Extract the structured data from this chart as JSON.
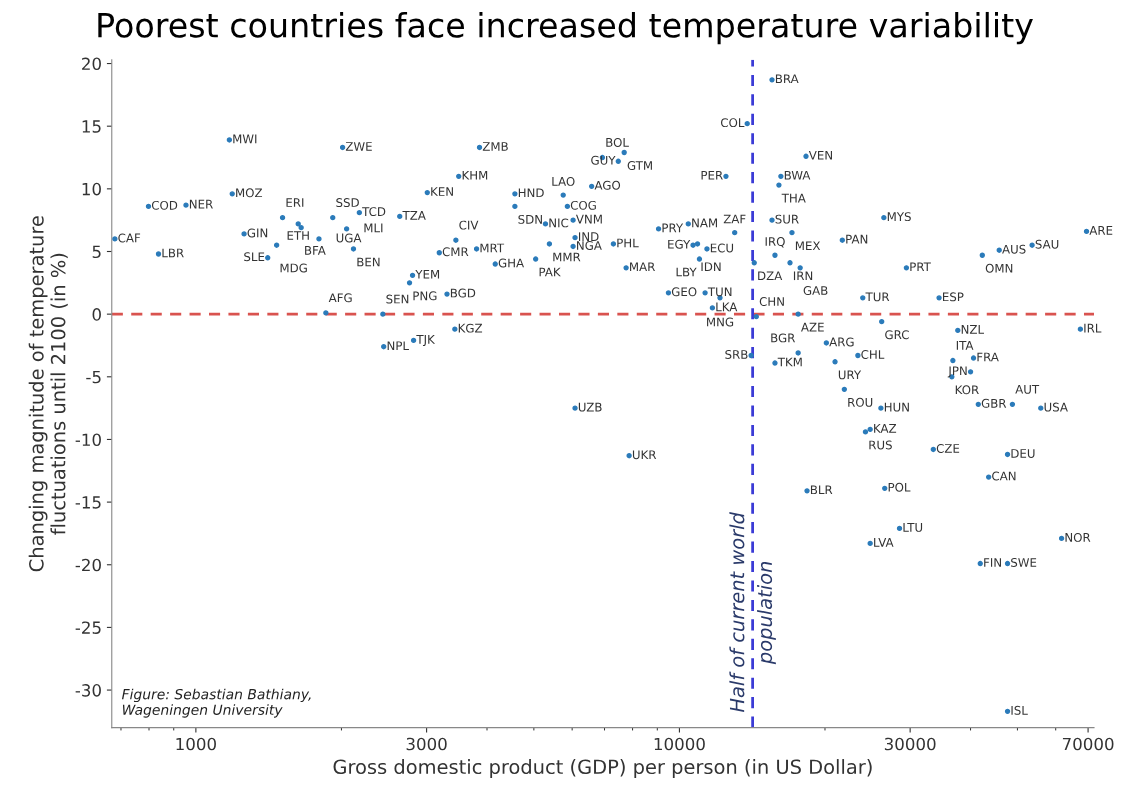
{
  "chart_data": {
    "type": "scatter",
    "title": "Poorest countries face increased temperature variability",
    "xlabel": "Gross domestic product (GDP) per person (in US Dollar)",
    "ylabel": "Changing magnitude of temperature\nfluctuations until 2100 (in %)",
    "log": "x",
    "xlim": [
      670,
      72000
    ],
    "xticks": [
      1000,
      3000,
      10000,
      30000,
      70000
    ],
    "ylim": [
      -33,
      20.3
    ],
    "yticks": [
      -30,
      -25,
      -20,
      -15,
      -10,
      -5,
      0,
      5,
      10,
      15,
      20
    ],
    "grid": false,
    "legend": false,
    "marker": "circle",
    "series": [
      {
        "color": "#2b7bba",
        "x": [
          680,
          798,
          954,
          837,
          1173,
          1189,
          1258,
          1511,
          1628,
          1651,
          1469,
          1408,
          1797,
          1919,
          2178,
          2050,
          2118,
          2011,
          1857,
          2436,
          2446,
          2820,
          2640,
          3010,
          2806,
          2766,
          3860,
          3496,
          3449,
          3187,
          3806,
          4160,
          3306,
          3432,
          4568,
          4568,
          5284,
          6027,
          5384,
          5043,
          6083,
          6027,
          5750,
          5865,
          6584,
          6930,
          7687,
          7474,
          7302,
          7758,
          9054,
          10430,
          10670,
          10900,
          11400,
          11000,
          9490,
          11300,
          12130,
          11700,
          13010,
          12480,
          13810,
          15540,
          18270,
          16210,
          16060,
          15540,
          17090,
          15760,
          16930,
          14280,
          17770,
          14420,
          17600,
          14070,
          15760,
          17600,
          20130,
          23390,
          20980,
          21930,
          21720,
          26470,
          29470,
          23940,
          26200,
          34430,
          37640,
          36770,
          40570,
          36590,
          40000,
          45850,
          53620,
          42300,
          69480,
          67480,
          48820,
          55880,
          41500,
          26100,
          24800,
          24250,
          33500,
          47700,
          43600,
          18360,
          26580,
          28520,
          24800,
          41890,
          47700,
          61700,
          47700,
          6083,
          7870
        ],
        "values": [
          6.0,
          8.6,
          8.7,
          4.8,
          13.9,
          9.6,
          6.4,
          7.7,
          7.2,
          6.9,
          5.5,
          4.5,
          6.0,
          7.7,
          8.1,
          6.8,
          5.2,
          13.3,
          0.1,
          0.0,
          -2.6,
          -2.1,
          7.8,
          9.7,
          3.1,
          2.5,
          13.3,
          11.0,
          5.9,
          4.9,
          5.2,
          4.0,
          1.6,
          -1.2,
          9.6,
          8.6,
          7.2,
          7.5,
          5.6,
          4.4,
          6.1,
          5.4,
          9.5,
          8.6,
          10.2,
          12.5,
          12.9,
          12.2,
          5.6,
          3.7,
          6.8,
          7.2,
          5.5,
          5.6,
          5.2,
          4.4,
          1.7,
          1.7,
          1.3,
          0.5,
          6.5,
          11.0,
          15.2,
          18.7,
          12.6,
          11.0,
          10.3,
          7.5,
          6.5,
          4.7,
          4.1,
          4.1,
          3.7,
          -0.2,
          0.0,
          -3.3,
          -3.9,
          -3.1,
          -2.3,
          -3.3,
          -3.8,
          -6.0,
          5.9,
          7.7,
          3.7,
          1.3,
          -0.6,
          1.3,
          -1.3,
          -3.7,
          -3.5,
          -5.0,
          -4.6,
          5.1,
          5.5,
          4.7,
          6.6,
          -1.2,
          -7.2,
          -7.5,
          -7.2,
          -7.5,
          -9.2,
          -9.4,
          -10.8,
          -11.2,
          -13.0,
          -14.1,
          -13.9,
          -17.1,
          -18.3,
          -19.9,
          -19.9,
          -17.9,
          -31.7,
          -7.5,
          -11.3
        ]
      }
    ],
    "ref_lines": [
      {
        "axis": "y",
        "value": 0,
        "color": "#d9534f",
        "line_style": "dashed"
      },
      {
        "axis": "x",
        "value": 14170,
        "color": "#3b3bd6",
        "line_style": "dashed",
        "label": "Half of current world\npopulation"
      }
    ],
    "annotations": [
      "Figure: Sebastian Bathiany,\nWageningen University",
      {
        "text": "CAF",
        "x": 680,
        "y": 6.0
      },
      {
        "text": "COD",
        "x": 798,
        "y": 8.6
      },
      {
        "text": "NER",
        "x": 954,
        "y": 8.7
      },
      {
        "text": "LBR",
        "x": 837,
        "y": 4.8
      },
      {
        "text": "MWI",
        "x": 1173,
        "y": 13.9
      },
      {
        "text": "MOZ",
        "x": 1189,
        "y": 9.6
      },
      {
        "text": "GIN",
        "x": 1258,
        "y": 6.4
      },
      {
        "text": "ERI",
        "x": 1511,
        "y": 7.7
      },
      {
        "text": "ETH",
        "x": 1628,
        "y": 7.2
      },
      {
        "text": "BFA",
        "x": 1651,
        "y": 6.9
      },
      {
        "text": "MDG",
        "x": 1469,
        "y": 5.5
      },
      {
        "text": "SLE",
        "x": 1408,
        "y": 4.5
      },
      {
        "text": "UGA",
        "x": 1797,
        "y": 6.0
      },
      {
        "text": "SSD",
        "x": 1919,
        "y": 7.7
      },
      {
        "text": "TCD",
        "x": 2178,
        "y": 8.1
      },
      {
        "text": "MLI",
        "x": 2050,
        "y": 6.8
      },
      {
        "text": "BEN",
        "x": 2118,
        "y": 5.2
      },
      {
        "text": "ZWE",
        "x": 2011,
        "y": 13.3
      },
      {
        "text": "AFG",
        "x": 1857,
        "y": 0.1
      },
      {
        "text": "SEN",
        "x": 2436,
        "y": 0.0
      },
      {
        "text": "NPL",
        "x": 2446,
        "y": -2.6
      },
      {
        "text": "TJK",
        "x": 2820,
        "y": -2.1
      },
      {
        "text": "TZA",
        "x": 2640,
        "y": 7.8
      },
      {
        "text": "KEN",
        "x": 3010,
        "y": 9.7
      },
      {
        "text": "YEM",
        "x": 2806,
        "y": 3.1
      },
      {
        "text": "PNG",
        "x": 2766,
        "y": 2.5
      },
      {
        "text": "ZMB",
        "x": 3860,
        "y": 13.3
      },
      {
        "text": "KHM",
        "x": 3496,
        "y": 11.0
      },
      {
        "text": "CIV",
        "x": 3449,
        "y": 5.9
      },
      {
        "text": "CMR",
        "x": 3187,
        "y": 4.9
      },
      {
        "text": "MRT",
        "x": 3806,
        "y": 5.2
      },
      {
        "text": "GHA",
        "x": 4160,
        "y": 4.0
      },
      {
        "text": "BGD",
        "x": 3306,
        "y": 1.6
      },
      {
        "text": "KGZ",
        "x": 3432,
        "y": -1.2
      },
      {
        "text": "HND",
        "x": 4568,
        "y": 9.6
      },
      {
        "text": "SDN",
        "x": 4568,
        "y": 8.6
      },
      {
        "text": "NIC",
        "x": 5284,
        "y": 7.2
      },
      {
        "text": "VNM",
        "x": 6027,
        "y": 7.5
      },
      {
        "text": "MMR",
        "x": 5384,
        "y": 5.6
      },
      {
        "text": "PAK",
        "x": 5043,
        "y": 4.4
      },
      {
        "text": "IND",
        "x": 6083,
        "y": 6.1
      },
      {
        "text": "NGA",
        "x": 6027,
        "y": 5.4
      },
      {
        "text": "LAO",
        "x": 5750,
        "y": 9.5
      },
      {
        "text": "COG",
        "x": 5865,
        "y": 8.6
      },
      {
        "text": "AGO",
        "x": 6584,
        "y": 10.2
      },
      {
        "text": "BOL",
        "x": 6930,
        "y": 12.5
      },
      {
        "text": "GTM",
        "x": 7687,
        "y": 12.9
      },
      {
        "text": "GUY",
        "x": 7474,
        "y": 12.2
      },
      {
        "text": "PHL",
        "x": 7302,
        "y": 5.6
      },
      {
        "text": "MAR",
        "x": 7758,
        "y": 3.7
      },
      {
        "text": "PRY",
        "x": 9054,
        "y": 6.8
      },
      {
        "text": "NAM",
        "x": 10430,
        "y": 7.2
      },
      {
        "text": "EGY",
        "x": 10670,
        "y": 5.5
      },
      {
        "text": "IDN",
        "x": 10900,
        "y": 5.6
      },
      {
        "text": "ECU",
        "x": 11400,
        "y": 5.2
      },
      {
        "text": "LBY",
        "x": 11000,
        "y": 4.4
      },
      {
        "text": "GEO",
        "x": 9490,
        "y": 1.7
      },
      {
        "text": "TUN",
        "x": 11300,
        "y": 1.7
      },
      {
        "text": "MNG",
        "x": 12130,
        "y": 1.3
      },
      {
        "text": "LKA",
        "x": 11700,
        "y": 0.5
      },
      {
        "text": "ZAF",
        "x": 13010,
        "y": 6.5
      },
      {
        "text": "PER",
        "x": 12480,
        "y": 11.0
      },
      {
        "text": "COL",
        "x": 13810,
        "y": 15.2
      },
      {
        "text": "BRA",
        "x": 15540,
        "y": 18.7
      },
      {
        "text": "VEN",
        "x": 18270,
        "y": 12.6
      },
      {
        "text": "BWA",
        "x": 16210,
        "y": 11.0
      },
      {
        "text": "THA",
        "x": 16060,
        "y": 10.3
      },
      {
        "text": "SUR",
        "x": 15540,
        "y": 7.5
      },
      {
        "text": "MEX",
        "x": 17090,
        "y": 6.5
      },
      {
        "text": "IRQ",
        "x": 15760,
        "y": 4.7
      },
      {
        "text": "IRN",
        "x": 16930,
        "y": 4.1
      },
      {
        "text": "DZA",
        "x": 14280,
        "y": 4.1
      },
      {
        "text": "GAB",
        "x": 17770,
        "y": 3.7
      },
      {
        "text": "CHN",
        "x": 14420,
        "y": -0.2
      },
      {
        "text": "AZE",
        "x": 17600,
        "y": 0.0
      },
      {
        "text": "SRB",
        "x": 14070,
        "y": -3.3
      },
      {
        "text": "TKM",
        "x": 15760,
        "y": -3.9
      },
      {
        "text": "BGR",
        "x": 17600,
        "y": -3.1
      },
      {
        "text": "ARG",
        "x": 20130,
        "y": -2.3
      },
      {
        "text": "CHL",
        "x": 23390,
        "y": -3.3
      },
      {
        "text": "URY",
        "x": 20980,
        "y": -3.8
      },
      {
        "text": "ROU",
        "x": 21930,
        "y": -6.0
      },
      {
        "text": "PAN",
        "x": 21720,
        "y": 5.9
      },
      {
        "text": "MYS",
        "x": 26470,
        "y": 7.7
      },
      {
        "text": "PRT",
        "x": 29470,
        "y": 3.7
      },
      {
        "text": "TUR",
        "x": 23940,
        "y": 1.3
      },
      {
        "text": "GRC",
        "x": 26200,
        "y": -0.6
      },
      {
        "text": "ESP",
        "x": 34430,
        "y": 1.3
      },
      {
        "text": "NZL",
        "x": 37640,
        "y": -1.3
      },
      {
        "text": "ITA",
        "x": 36770,
        "y": -3.7
      },
      {
        "text": "FRA",
        "x": 40570,
        "y": -3.5
      },
      {
        "text": "KOR",
        "x": 36590,
        "y": -5.0
      },
      {
        "text": "JPN",
        "x": 40000,
        "y": -4.6
      },
      {
        "text": "AUS",
        "x": 45850,
        "y": 5.1
      },
      {
        "text": "SAU",
        "x": 53620,
        "y": 5.5
      },
      {
        "text": "OMN",
        "x": 42300,
        "y": 4.7
      },
      {
        "text": "ARE",
        "x": 69480,
        "y": 6.6
      },
      {
        "text": "IRL",
        "x": 67480,
        "y": -1.2
      },
      {
        "text": "AUT",
        "x": 48820,
        "y": -7.2
      },
      {
        "text": "USA",
        "x": 55880,
        "y": -7.5
      },
      {
        "text": "GBR",
        "x": 41500,
        "y": -7.2
      },
      {
        "text": "HUN",
        "x": 26100,
        "y": -7.5
      },
      {
        "text": "KAZ",
        "x": 24800,
        "y": -9.2
      },
      {
        "text": "RUS",
        "x": 24250,
        "y": -9.4
      },
      {
        "text": "CZE",
        "x": 33500,
        "y": -10.8
      },
      {
        "text": "DEU",
        "x": 47700,
        "y": -11.2
      },
      {
        "text": "CAN",
        "x": 43600,
        "y": -13.0
      },
      {
        "text": "BLR",
        "x": 18360,
        "y": -14.1
      },
      {
        "text": "POL",
        "x": 26580,
        "y": -13.9
      },
      {
        "text": "LTU",
        "x": 28520,
        "y": -17.1
      },
      {
        "text": "LVA",
        "x": 24800,
        "y": -18.3
      },
      {
        "text": "FIN",
        "x": 41890,
        "y": -19.9
      },
      {
        "text": "SWE",
        "x": 47700,
        "y": -19.9
      },
      {
        "text": "NOR",
        "x": 61700,
        "y": -17.9
      },
      {
        "text": "ISL",
        "x": 47700,
        "y": -31.7
      },
      {
        "text": "UZB",
        "x": 6083,
        "y": -7.5
      },
      {
        "text": "UKR",
        "x": 7870,
        "y": -11.3
      }
    ]
  }
}
